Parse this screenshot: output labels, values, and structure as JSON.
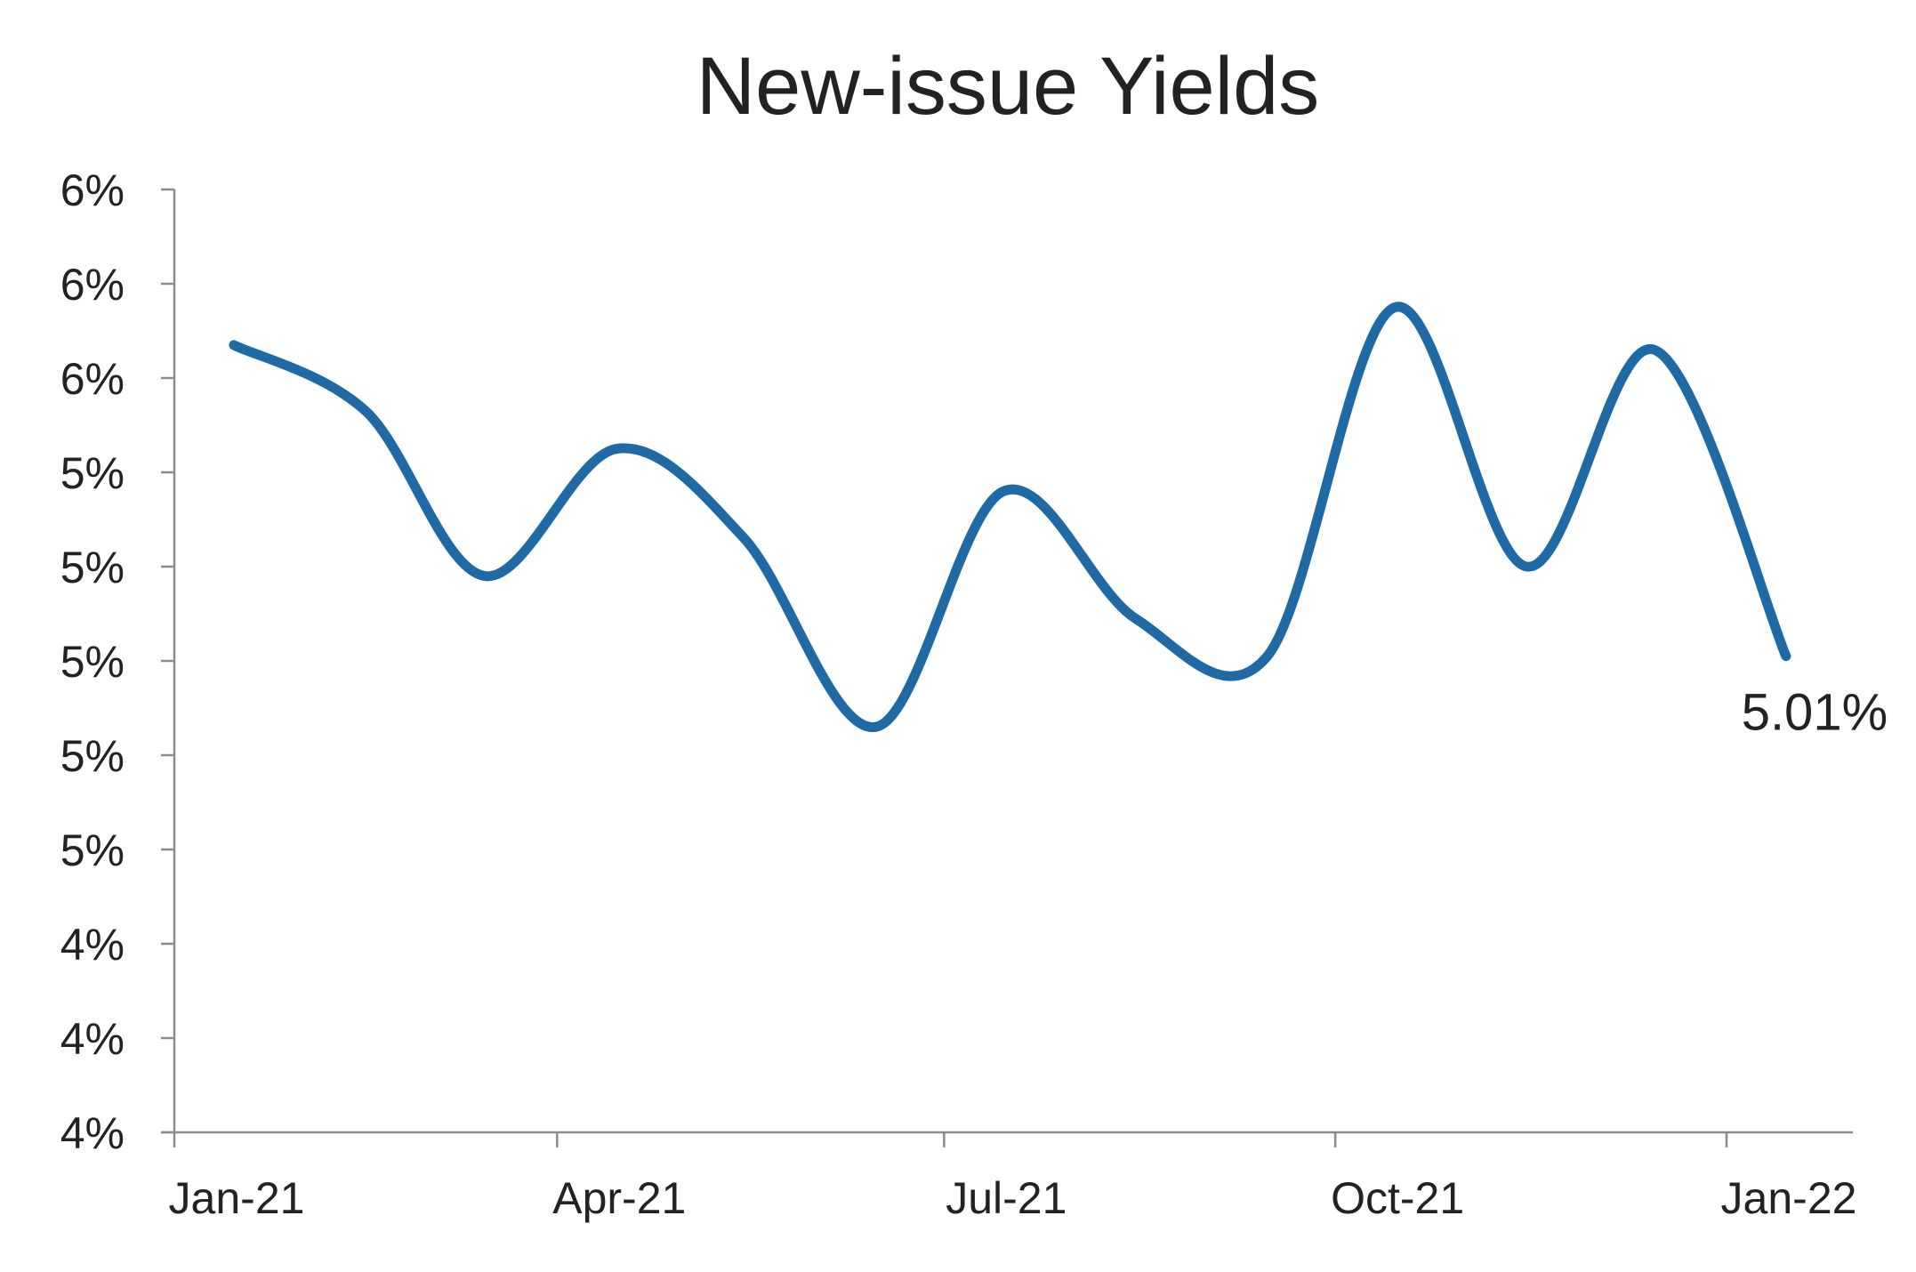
{
  "chart_data": {
    "type": "line",
    "title": "New-issue Yields",
    "xlabel": "",
    "ylabel": "",
    "x_ticks": [
      "Jan-21",
      "Apr-21",
      "Jul-21",
      "Oct-21",
      "Jan-22"
    ],
    "y_ticks": [
      "4%",
      "4%",
      "4%",
      "5%",
      "5%",
      "5%",
      "5%",
      "5%",
      "6%",
      "6%",
      "6%"
    ],
    "ylim": [
      4.0,
      6.0
    ],
    "grid": false,
    "legend": "none",
    "series_color": "#1f6aa5",
    "series": [
      {
        "x": [
          "2021-01-15",
          "2021-02-15",
          "2021-03-15",
          "2021-04-15",
          "2021-05-15",
          "2021-06-15",
          "2021-07-15",
          "2021-08-15",
          "2021-09-15",
          "2021-10-15",
          "2021-11-15",
          "2021-12-15",
          "2022-01-15"
        ],
        "values": [
          5.67,
          5.53,
          5.18,
          5.45,
          5.26,
          4.86,
          5.36,
          5.09,
          5.01,
          5.75,
          5.2,
          5.66,
          5.01
        ]
      }
    ],
    "annotations": [
      {
        "x": "2022-01-15",
        "y": 5.01,
        "text": "5.01%"
      }
    ]
  }
}
